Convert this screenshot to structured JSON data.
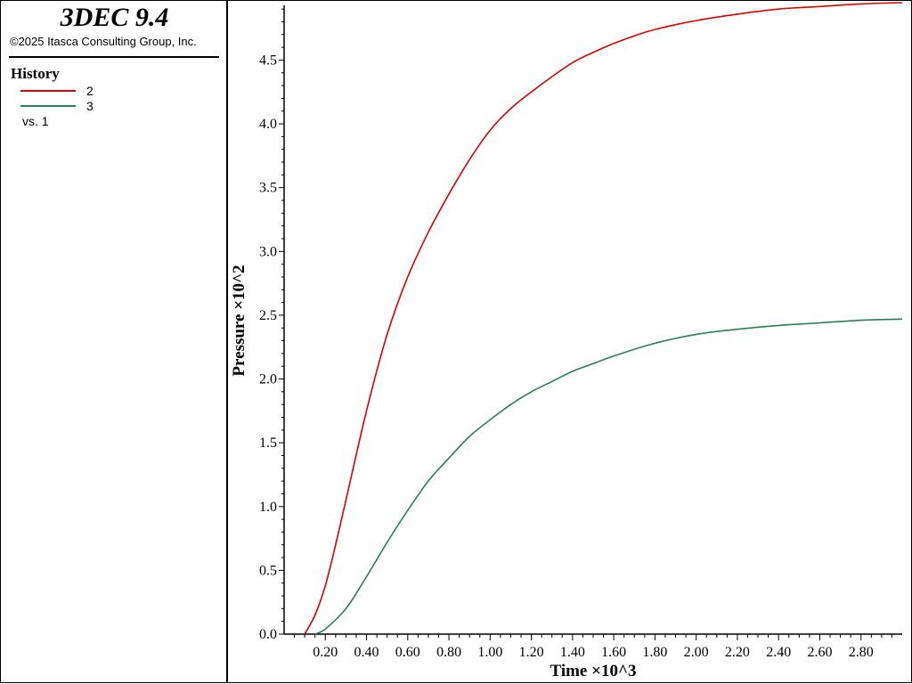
{
  "app": {
    "title": "3DEC 9.4",
    "copyright": "©2025 Itasca Consulting Group, Inc."
  },
  "legend": {
    "heading": "History",
    "entries": [
      {
        "label": "2",
        "color": "#dd0000"
      },
      {
        "label": "3",
        "color": "#2e7d55"
      }
    ],
    "vs_label": "vs. 1"
  },
  "chart_data": {
    "type": "line",
    "title": "",
    "xlabel": "Time ×10^3",
    "ylabel": "Pressure ×10^2",
    "xlim": [
      0,
      3.0
    ],
    "ylim": [
      0,
      4.95
    ],
    "x_ticks": [
      0.2,
      0.4,
      0.6,
      0.8,
      1.0,
      1.2,
      1.4,
      1.6,
      1.8,
      2.0,
      2.2,
      2.4,
      2.6,
      2.8
    ],
    "x_tick_labels": [
      "0.20",
      "0.40",
      "0.60",
      "0.80",
      "1.00",
      "1.20",
      "1.40",
      "1.60",
      "1.80",
      "2.00",
      "2.20",
      "2.40",
      "2.60",
      "2.80"
    ],
    "y_ticks": [
      0.0,
      0.5,
      1.0,
      1.5,
      2.0,
      2.5,
      3.0,
      3.5,
      4.0,
      4.5
    ],
    "y_tick_labels": [
      "0.0",
      "0.5",
      "1.0",
      "1.5",
      "2.0",
      "2.5",
      "3.0",
      "3.5",
      "4.0",
      "4.5"
    ],
    "grid": false,
    "series": [
      {
        "name": "2",
        "color": "#dd0000",
        "x": [
          0.1,
          0.15,
          0.2,
          0.25,
          0.3,
          0.4,
          0.5,
          0.6,
          0.7,
          0.8,
          0.9,
          1.0,
          1.1,
          1.2,
          1.3,
          1.4,
          1.5,
          1.6,
          1.7,
          1.8,
          2.0,
          2.2,
          2.4,
          2.6,
          2.8,
          3.0
        ],
        "y": [
          0.0,
          0.15,
          0.38,
          0.7,
          1.05,
          1.75,
          2.35,
          2.8,
          3.15,
          3.45,
          3.72,
          3.95,
          4.12,
          4.25,
          4.37,
          4.48,
          4.56,
          4.63,
          4.69,
          4.74,
          4.81,
          4.86,
          4.9,
          4.92,
          4.94,
          4.95
        ]
      },
      {
        "name": "3",
        "color": "#2e7d55",
        "x": [
          0.15,
          0.2,
          0.3,
          0.4,
          0.5,
          0.6,
          0.7,
          0.8,
          0.9,
          1.0,
          1.1,
          1.2,
          1.3,
          1.4,
          1.5,
          1.6,
          1.8,
          2.0,
          2.2,
          2.4,
          2.6,
          2.8,
          3.0
        ],
        "y": [
          0.0,
          0.04,
          0.2,
          0.45,
          0.72,
          0.97,
          1.2,
          1.38,
          1.55,
          1.68,
          1.8,
          1.9,
          1.98,
          2.06,
          2.12,
          2.18,
          2.28,
          2.35,
          2.39,
          2.42,
          2.44,
          2.46,
          2.47
        ]
      }
    ]
  }
}
